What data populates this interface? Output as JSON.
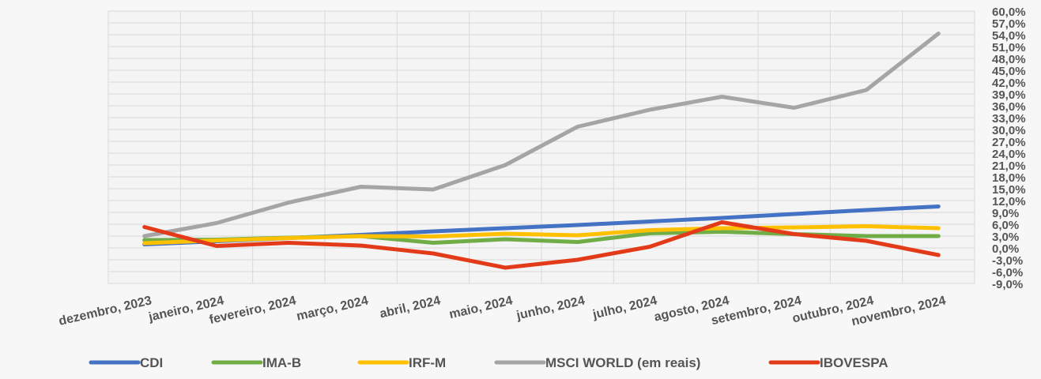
{
  "chart_data": {
    "type": "line",
    "title": "",
    "xlabel": "",
    "ylabel": "",
    "categories": [
      "dezembro, 2023",
      "janeiro, 2024",
      "fevereiro, 2024",
      "março, 2024",
      "abril, 2024",
      "maio, 2024",
      "junho, 2024",
      "julho, 2024",
      "agosto, 2024",
      "setembro, 2024",
      "outubro, 2024",
      "novembro, 2024"
    ],
    "y_ticks": [
      "60,0%",
      "57,0%",
      "54,0%",
      "51,0%",
      "48,0%",
      "45,0%",
      "42,0%",
      "39,0%",
      "36,0%",
      "33,0%",
      "30,0%",
      "27,0%",
      "24,0%",
      "21,0%",
      "18,0%",
      "15,0%",
      "12,0%",
      "9,0%",
      "6,0%",
      "3,0%",
      "0,0%",
      "-3,0%",
      "-6,0%",
      "-9,0%"
    ],
    "ylim": [
      -9,
      60
    ],
    "grid": true,
    "legend_position": "bottom",
    "series": [
      {
        "name": "CDI",
        "color": "#4472c4",
        "values": [
          0.9,
          1.7,
          2.5,
          3.3,
          4.2,
          5.0,
          5.8,
          6.7,
          7.6,
          8.6,
          9.6,
          10.5
        ]
      },
      {
        "name": "IMA-B",
        "color": "#70ad47",
        "values": [
          2.0,
          2.1,
          2.6,
          3.0,
          1.3,
          2.2,
          1.5,
          3.7,
          4.1,
          3.5,
          3.0,
          3.0
        ]
      },
      {
        "name": "IRF-M",
        "color": "#ffc000",
        "values": [
          1.2,
          1.9,
          2.5,
          3.0,
          2.9,
          3.6,
          3.2,
          4.5,
          5.0,
          5.2,
          5.5,
          5.0
        ]
      },
      {
        "name": "MSCI WORLD (em reais)",
        "color": "#a5a5a5",
        "values": [
          3.0,
          6.3,
          11.5,
          15.5,
          14.8,
          21.0,
          30.7,
          35.0,
          38.3,
          35.5,
          40.0,
          54.3
        ]
      },
      {
        "name": "IBOVESPA",
        "color": "#e33b1a",
        "values": [
          5.3,
          0.5,
          1.3,
          0.6,
          -1.4,
          -5.0,
          -3.0,
          0.3,
          6.5,
          3.5,
          1.8,
          -1.8
        ]
      }
    ]
  }
}
